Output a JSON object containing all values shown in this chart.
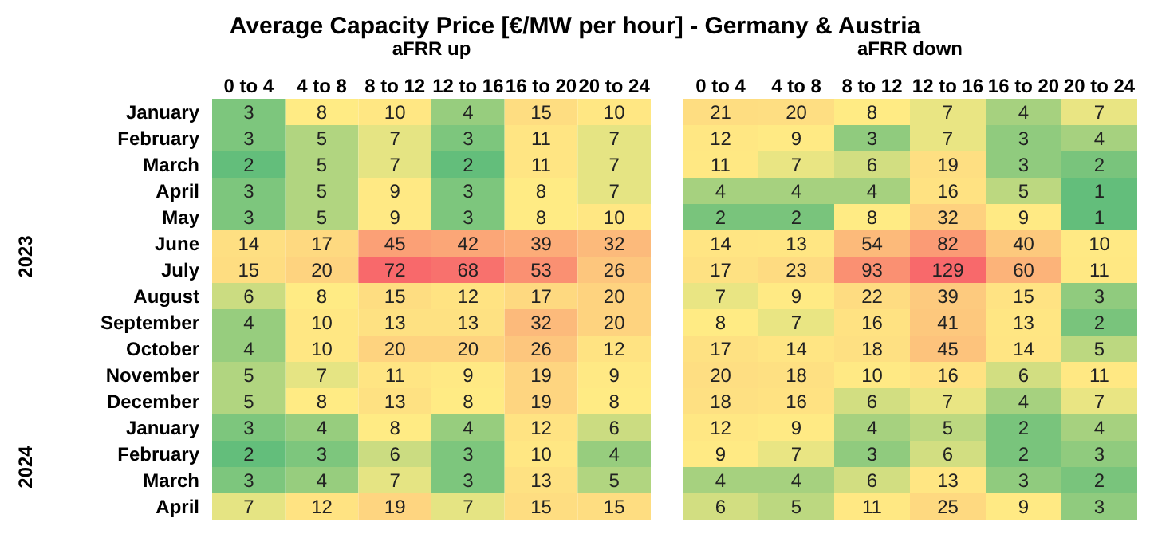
{
  "chart_data": [
    {
      "type": "heatmap",
      "title": "Average Capacity Price [€/MW per hour] - Germany & Austria",
      "xlabel": "aFRR up",
      "data_labels": true,
      "annotations": [
        "2023",
        "2024"
      ],
      "colors": [
        "#63be7b",
        "#ffeb84",
        "#f8696b"
      ],
      "categories": [
        "0 to 4",
        "4 to 8",
        "8 to 12",
        "12 to 16",
        "16 to 20",
        "20 to 24"
      ],
      "y_categories": [
        "January",
        "February",
        "March",
        "April",
        "May",
        "June",
        "July",
        "August",
        "September",
        "October",
        "November",
        "December",
        "January",
        "February",
        "March",
        "April"
      ],
      "cells": [
        [
          3,
          8,
          10,
          4,
          15,
          10
        ],
        [
          3,
          5,
          7,
          3,
          11,
          7
        ],
        [
          2,
          5,
          7,
          2,
          11,
          7
        ],
        [
          3,
          5,
          9,
          3,
          8,
          7
        ],
        [
          3,
          5,
          9,
          3,
          8,
          10
        ],
        [
          14,
          17,
          45,
          42,
          39,
          32
        ],
        [
          15,
          20,
          72,
          68,
          53,
          26
        ],
        [
          6,
          8,
          15,
          12,
          17,
          20
        ],
        [
          4,
          10,
          13,
          13,
          32,
          20
        ],
        [
          4,
          10,
          20,
          20,
          26,
          12
        ],
        [
          5,
          7,
          11,
          9,
          19,
          9
        ],
        [
          5,
          8,
          13,
          8,
          19,
          8
        ],
        [
          3,
          4,
          8,
          4,
          12,
          6
        ],
        [
          2,
          3,
          6,
          3,
          10,
          4
        ],
        [
          3,
          4,
          7,
          3,
          13,
          5
        ],
        [
          7,
          12,
          19,
          7,
          15,
          15
        ]
      ]
    },
    {
      "type": "heatmap",
      "xlabel": "aFRR down",
      "tick_labels": "x",
      "data_labels": true,
      "colors": [
        "#63be7b",
        "#ffeb84",
        "#f8696b"
      ],
      "categories": [
        "0 to 4",
        "4 to 8",
        "8 to 12",
        "12 to 16",
        "16 to 20",
        "20 to 24"
      ],
      "y_categories": [
        null,
        null,
        null,
        null,
        null,
        null,
        null,
        null,
        null,
        null,
        null,
        null,
        null,
        null,
        null,
        null
      ],
      "cells": [
        [
          21,
          20,
          8,
          7,
          4,
          7
        ],
        [
          12,
          9,
          3,
          7,
          3,
          4
        ],
        [
          11,
          7,
          6,
          19,
          3,
          2
        ],
        [
          4,
          4,
          4,
          16,
          5,
          1
        ],
        [
          2,
          2,
          8,
          32,
          9,
          1
        ],
        [
          14,
          13,
          54,
          82,
          40,
          10
        ],
        [
          17,
          23,
          93,
          129,
          60,
          11
        ],
        [
          7,
          9,
          22,
          39,
          15,
          3
        ],
        [
          8,
          7,
          16,
          41,
          13,
          2
        ],
        [
          17,
          14,
          18,
          45,
          14,
          5
        ],
        [
          20,
          18,
          10,
          16,
          6,
          11
        ],
        [
          18,
          16,
          6,
          7,
          4,
          7
        ],
        [
          12,
          9,
          4,
          5,
          2,
          4
        ],
        [
          9,
          7,
          3,
          6,
          2,
          3
        ],
        [
          4,
          4,
          6,
          13,
          3,
          2
        ],
        [
          6,
          5,
          11,
          25,
          9,
          3
        ]
      ]
    }
  ]
}
